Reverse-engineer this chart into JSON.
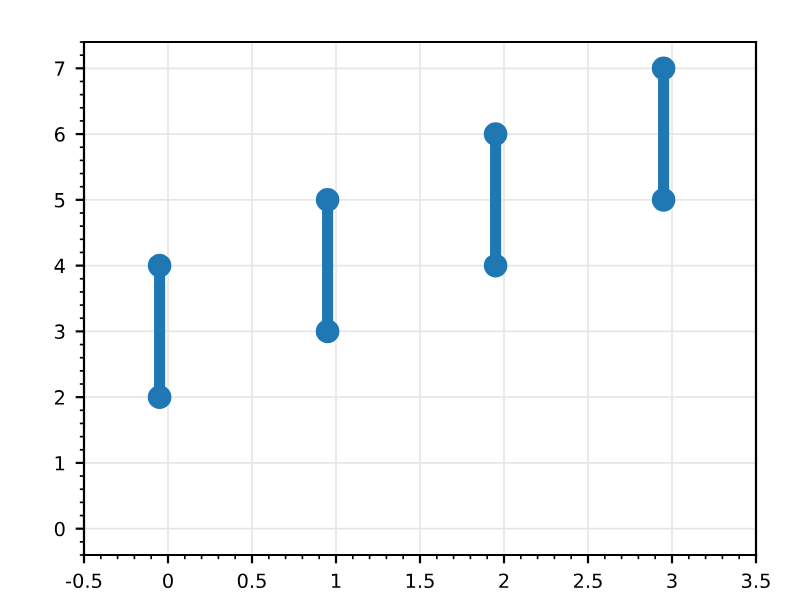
{
  "chart_data": {
    "type": "line",
    "marker": "circle",
    "series": [
      {
        "color": "#1f77b4",
        "x": [
          -0.05,
          -0.05
        ],
        "values": [
          2,
          4
        ]
      },
      {
        "color": "#1f77b4",
        "x": [
          0.95,
          0.95
        ],
        "values": [
          3,
          5
        ]
      },
      {
        "color": "#1f77b4",
        "x": [
          1.95,
          1.95
        ],
        "values": [
          4,
          6
        ]
      },
      {
        "color": "#1f77b4",
        "x": [
          2.95,
          2.95
        ],
        "values": [
          5,
          7
        ]
      }
    ],
    "xlim": [
      -0.5,
      3.5
    ],
    "xticks": [
      -0.5,
      0,
      0.5,
      1,
      1.5,
      2,
      2.5,
      3,
      3.5
    ],
    "ylim": [
      -0.4,
      7.4
    ],
    "yticks": [
      0,
      1,
      2,
      3,
      4,
      5,
      6,
      7
    ],
    "grid": true
  }
}
